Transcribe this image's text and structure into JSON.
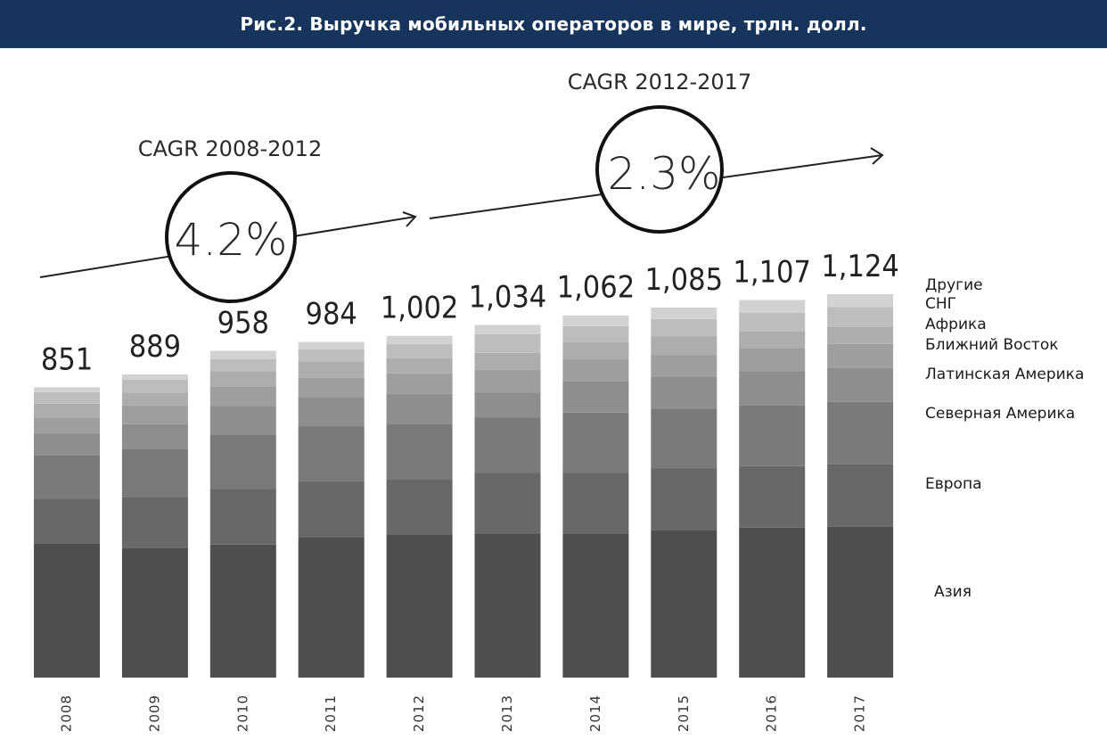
{
  "header": {
    "title": "Рис.2. Выручка мобильных операторов в мире, трлн. долл."
  },
  "colors": {
    "header_bg": "#17355c",
    "segments": [
      "#4e4e4e",
      "#686868",
      "#7a7a7a",
      "#8e8e8e",
      "#9e9e9e",
      "#adadad",
      "#bdbdbd",
      "#d2d2d2"
    ]
  },
  "annotations": {
    "cagr1": {
      "title": "CAGR 2008-2012",
      "value": "4.2%"
    },
    "cagr2": {
      "title": "CAGR 2012-2017",
      "value": "2.3%"
    }
  },
  "chart_data": {
    "type": "bar",
    "stacked": true,
    "categories": [
      "2008",
      "2009",
      "2010",
      "2011",
      "2012",
      "2013",
      "2014",
      "2015",
      "2016",
      "2017"
    ],
    "total_labels": [
      "851",
      "889",
      "958",
      "984",
      "1,002",
      "1,034",
      "1,062",
      "1,085",
      "1,107",
      "1,124"
    ],
    "totals": [
      851,
      889,
      958,
      984,
      1002,
      1034,
      1062,
      1085,
      1107,
      1124
    ],
    "series": [
      {
        "name": "Азия",
        "values": [
          394,
          380,
          390,
          412,
          420,
          423,
          423,
          433,
          440,
          442
        ]
      },
      {
        "name": "Европа",
        "values": [
          130,
          148,
          163,
          165,
          162,
          178,
          178,
          180,
          180,
          183
        ]
      },
      {
        "name": "Северная Америка",
        "values": [
          127,
          143,
          160,
          160,
          162,
          162,
          176,
          175,
          178,
          183
        ]
      },
      {
        "name": "Латинская Америка",
        "values": [
          66,
          72,
          83,
          86,
          88,
          72,
          92,
          95,
          100,
          100
        ]
      },
      {
        "name": "Ближний Восток",
        "values": [
          46,
          55,
          58,
          56,
          60,
          67,
          64,
          63,
          68,
          70
        ]
      },
      {
        "name": "Африка",
        "values": [
          40,
          37,
          44,
          48,
          44,
          50,
          50,
          55,
          50,
          50
        ]
      },
      {
        "name": "СНГ",
        "values": [
          34,
          38,
          36,
          35,
          42,
          55,
          47,
          50,
          53,
          58
        ]
      },
      {
        "name": "Другие",
        "values": [
          14,
          16,
          24,
          22,
          24,
          27,
          32,
          34,
          38,
          38
        ]
      }
    ],
    "ylim": [
      0,
      1124
    ]
  }
}
